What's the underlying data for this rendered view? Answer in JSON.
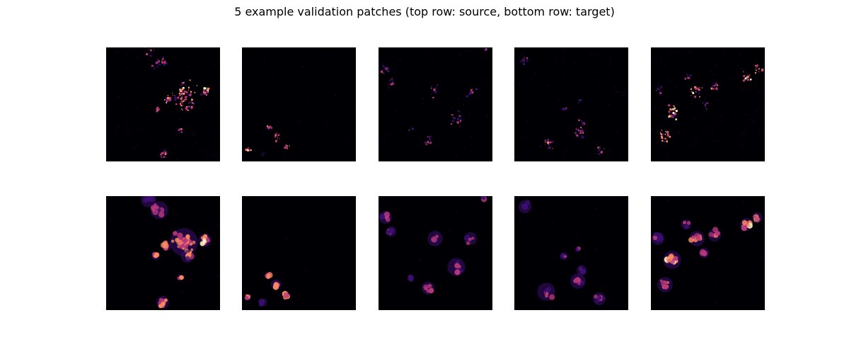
{
  "figure": {
    "title": "5 example validation patches (top row: source, bottom row: target)"
  },
  "colormap": "magma",
  "colors": {
    "background": "#ffffff",
    "patch_background": "#000004",
    "low": "#3b0f70",
    "mid": "#b73779",
    "high": "#fc8961",
    "peak": "#fcfdbf"
  },
  "rows": [
    {
      "name": "source",
      "patch_count": 5
    },
    {
      "name": "target",
      "patch_count": 5
    }
  ]
}
